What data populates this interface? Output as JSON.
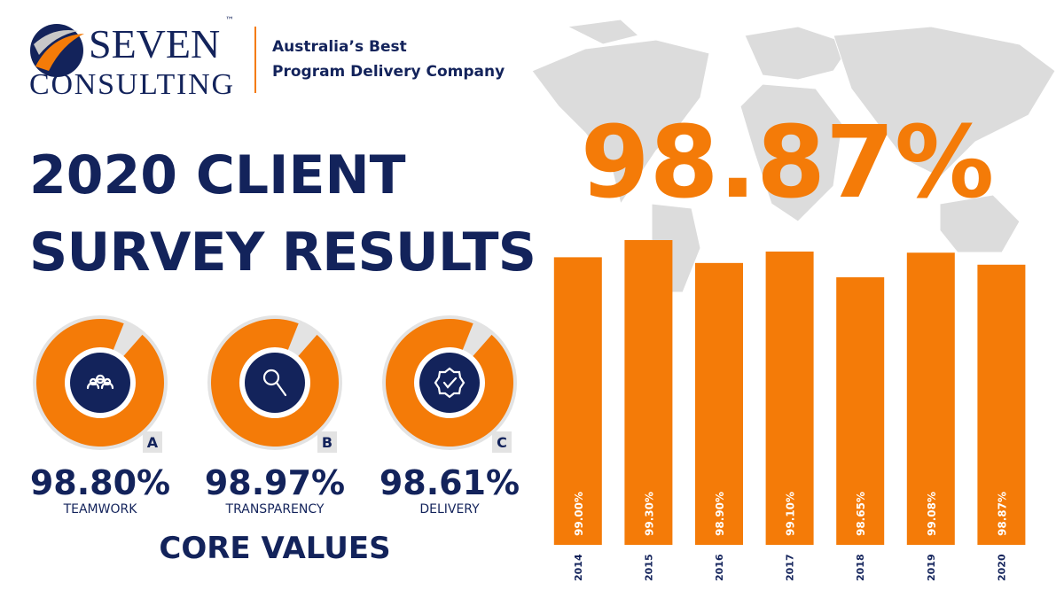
{
  "header": {
    "logo_top": "SEVEN",
    "trademark": "™",
    "logo_bottom": "CONSULTING",
    "tagline_1": "Australia’s Best",
    "tagline_2": "Program Delivery Company"
  },
  "title_lines": [
    "2020 CLIENT",
    "SURVEY RESULTS"
  ],
  "headline": "98.87%",
  "core_values": {
    "title": "CORE VALUES",
    "items": [
      {
        "letter": "A",
        "score": "98.80%",
        "name": "TEAMWORK"
      },
      {
        "letter": "B",
        "score": "98.97%",
        "name": "TRANSPARENCY"
      },
      {
        "letter": "C",
        "score": "98.61%",
        "name": "DELIVERY"
      }
    ]
  },
  "chart_data": {
    "type": "bar",
    "categories": [
      "2014",
      "2015",
      "2016",
      "2017",
      "2018",
      "2019",
      "2020"
    ],
    "values": [
      99.0,
      99.3,
      98.9,
      99.1,
      98.65,
      99.08,
      98.87
    ],
    "value_labels": [
      "99.00%",
      "99.30%",
      "98.90%",
      "99.10%",
      "98.65%",
      "99.08%",
      "98.87%"
    ],
    "color": "#f47b08"
  }
}
